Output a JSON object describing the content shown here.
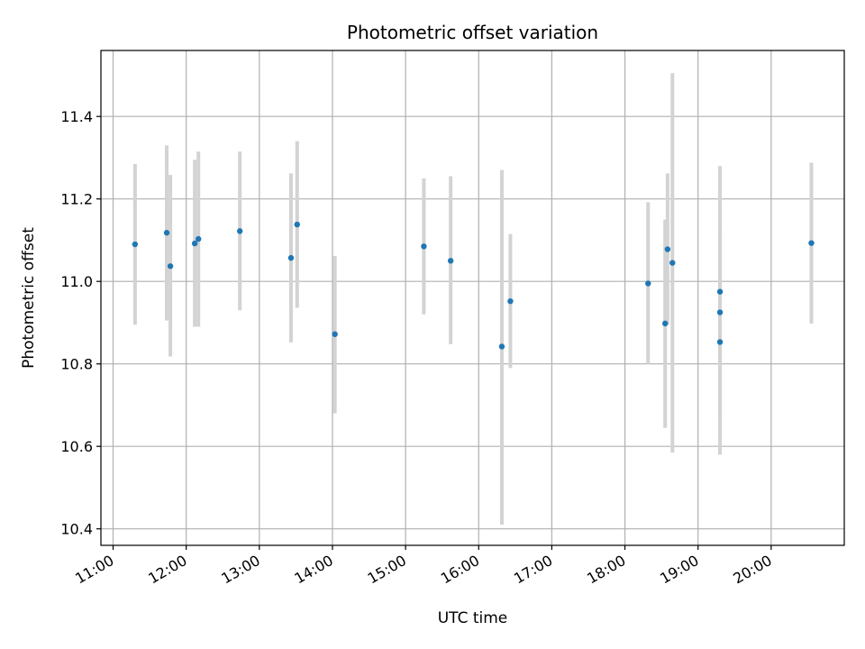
{
  "chart_data": {
    "type": "scatter",
    "title": "Photometric offset variation",
    "xlabel": "UTC time",
    "ylabel": "Photometric offset",
    "x_ticks": [
      "11:00",
      "12:00",
      "13:00",
      "14:00",
      "15:00",
      "16:00",
      "17:00",
      "18:00",
      "19:00",
      "20:00"
    ],
    "y_ticks": [
      10.4,
      10.6,
      10.8,
      11.0,
      11.2,
      11.4
    ],
    "xlim": [
      "10:50",
      "21:00"
    ],
    "ylim": [
      10.36,
      11.56
    ],
    "grid": true,
    "marker_color": "#1f77b4",
    "errorbar_color": "#d3d3d3",
    "points": [
      {
        "x": "11:18",
        "y": 11.09,
        "lo": 10.895,
        "hi": 11.285
      },
      {
        "x": "11:44",
        "y": 11.118,
        "lo": 10.905,
        "hi": 11.33
      },
      {
        "x": "11:47",
        "y": 11.037,
        "lo": 10.818,
        "hi": 11.258
      },
      {
        "x": "12:07",
        "y": 11.092,
        "lo": 10.89,
        "hi": 11.295
      },
      {
        "x": "12:10",
        "y": 11.103,
        "lo": 10.89,
        "hi": 11.315
      },
      {
        "x": "12:44",
        "y": 11.122,
        "lo": 10.93,
        "hi": 11.315
      },
      {
        "x": "13:26",
        "y": 11.057,
        "lo": 10.852,
        "hi": 11.262
      },
      {
        "x": "13:31",
        "y": 11.138,
        "lo": 10.936,
        "hi": 11.34
      },
      {
        "x": "14:02",
        "y": 10.872,
        "lo": 10.68,
        "hi": 11.062
      },
      {
        "x": "15:15",
        "y": 11.085,
        "lo": 10.92,
        "hi": 11.25
      },
      {
        "x": "15:37",
        "y": 11.05,
        "lo": 10.848,
        "hi": 11.255
      },
      {
        "x": "16:19",
        "y": 10.842,
        "lo": 10.41,
        "hi": 11.27
      },
      {
        "x": "16:26",
        "y": 10.952,
        "lo": 10.79,
        "hi": 11.115
      },
      {
        "x": "18:19",
        "y": 10.995,
        "lo": 10.8,
        "hi": 11.192
      },
      {
        "x": "18:33",
        "y": 10.898,
        "lo": 10.645,
        "hi": 11.15
      },
      {
        "x": "18:35",
        "y": 11.078,
        "lo": 10.895,
        "hi": 11.262
      },
      {
        "x": "18:39",
        "y": 11.045,
        "lo": 10.585,
        "hi": 11.505
      },
      {
        "x": "19:18",
        "y": 10.975,
        "lo": 10.67,
        "hi": 11.28
      },
      {
        "x": "19:18",
        "y": 10.925,
        "lo": 10.67,
        "hi": 11.12
      },
      {
        "x": "19:18",
        "y": 10.853,
        "lo": 10.58,
        "hi": 11.13
      },
      {
        "x": "20:33",
        "y": 11.093,
        "lo": 10.898,
        "hi": 11.288
      }
    ]
  }
}
